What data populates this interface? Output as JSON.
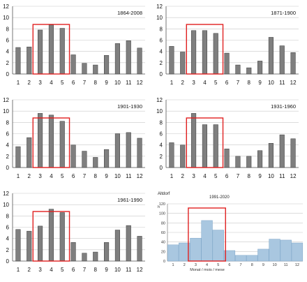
{
  "colors": {
    "bar_gray": "#7f7f7f",
    "bar_gray_edge": "#3a3a3a",
    "bar_blue": "#a9c7e0",
    "bar_blue_edge": "#7ea6c8",
    "highlight": "#e02020",
    "grid": "#c8c8c8"
  },
  "chart_data": [
    {
      "type": "bar",
      "title": "1864-2008",
      "categories": [
        "1",
        "2",
        "3",
        "4",
        "5",
        "6",
        "7",
        "8",
        "9",
        "10",
        "11",
        "12"
      ],
      "values": [
        4.7,
        4.8,
        7.8,
        8.7,
        8.1,
        3.4,
        1.9,
        1.6,
        3.3,
        5.4,
        5.9,
        4.6
      ],
      "ylim": [
        0,
        12
      ],
      "yticks": [
        "0",
        "2",
        "4",
        "6",
        "8",
        "10",
        "12"
      ],
      "grid": true,
      "highlight_categories": [
        "3",
        "4",
        "5"
      ]
    },
    {
      "type": "bar",
      "title": "1871-1900",
      "categories": [
        "1",
        "2",
        "3",
        "4",
        "5",
        "6",
        "7",
        "8",
        "9",
        "10",
        "11",
        "12"
      ],
      "values": [
        4.9,
        3.9,
        7.7,
        7.7,
        7.2,
        3.7,
        1.6,
        1.1,
        2.3,
        6.5,
        5.0,
        3.8
      ],
      "ylim": [
        0,
        12
      ],
      "yticks": [
        "0",
        "2",
        "4",
        "6",
        "8",
        "10",
        "12"
      ],
      "grid": true,
      "highlight_categories": [
        "3",
        "4",
        "5"
      ]
    },
    {
      "type": "bar",
      "title": "1901-1930",
      "categories": [
        "1",
        "2",
        "3",
        "4",
        "5",
        "6",
        "7",
        "8",
        "9",
        "10",
        "11",
        "12"
      ],
      "values": [
        3.7,
        5.3,
        9.6,
        9.3,
        8.2,
        4.0,
        2.9,
        1.8,
        3.2,
        6.0,
        6.2,
        5.2
      ],
      "ylim": [
        0,
        12
      ],
      "yticks": [
        "0",
        "2",
        "4",
        "6",
        "8",
        "10",
        "12"
      ],
      "grid": true,
      "highlight_categories": [
        "3",
        "4",
        "5"
      ]
    },
    {
      "type": "bar",
      "title": "1931-1960",
      "categories": [
        "1",
        "2",
        "3",
        "4",
        "5",
        "6",
        "7",
        "8",
        "9",
        "10",
        "11",
        "12"
      ],
      "values": [
        4.4,
        4.0,
        9.6,
        7.6,
        7.6,
        3.3,
        2.0,
        2.0,
        3.0,
        4.3,
        5.8,
        5.1
      ],
      "ylim": [
        0,
        12
      ],
      "yticks": [
        "0",
        "2",
        "4",
        "6",
        "8",
        "10",
        "12"
      ],
      "grid": true,
      "highlight_categories": [
        "3",
        "4",
        "5"
      ]
    },
    {
      "type": "bar",
      "title": "1961-1990",
      "categories": [
        "1",
        "2",
        "3",
        "4",
        "5",
        "6",
        "7",
        "8",
        "9",
        "10",
        "11",
        "12"
      ],
      "values": [
        5.6,
        5.3,
        6.2,
        9.2,
        8.6,
        3.3,
        1.4,
        1.6,
        3.3,
        5.5,
        6.3,
        4.4
      ],
      "ylim": [
        0,
        12
      ],
      "yticks": [
        "0",
        "2",
        "4",
        "6",
        "8",
        "10",
        "12"
      ],
      "grid": true,
      "highlight_categories": [
        "3",
        "4",
        "5"
      ]
    },
    {
      "type": "bar",
      "title": "1991-2020",
      "station": "Altdorf",
      "ylabel": "h",
      "xlabel": "Monat / mois / mese",
      "categories": [
        "1",
        "2",
        "3",
        "4",
        "5",
        "6",
        "7",
        "8",
        "9",
        "10",
        "11",
        "12"
      ],
      "values": [
        34,
        38,
        48,
        85,
        65,
        22,
        12,
        12,
        25,
        46,
        44,
        38
      ],
      "ylim": [
        0,
        120
      ],
      "yticks": [
        "0",
        "20",
        "40",
        "60",
        "80",
        "100",
        "120"
      ],
      "grid": true,
      "highlight_categories": [
        "3",
        "4",
        "5"
      ]
    }
  ]
}
